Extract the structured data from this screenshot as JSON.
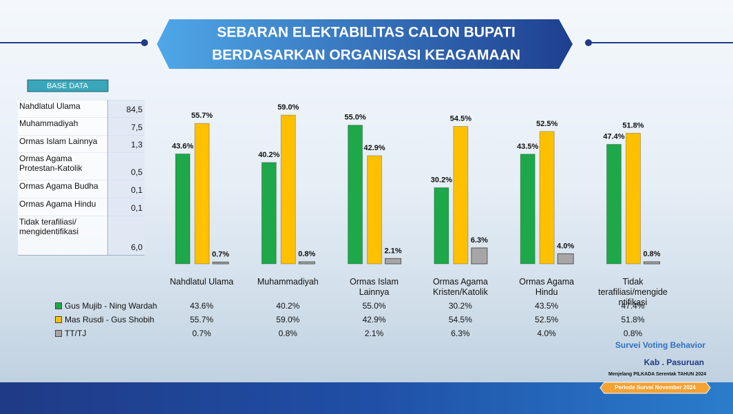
{
  "chart_data": {
    "type": "bar",
    "title": [
      "SEBARAN ELEKTABILITAS CALON BUPATI",
      "BERDASARKAN ORGANISASI KEAGAMAAN"
    ],
    "categories": [
      "Nahdlatul Ulama",
      "Muhammadiyah",
      "Ormas Islam Lainnya",
      "Ormas Agama Kristen/Katolik",
      "Ormas Agama Hindu",
      "Tidak terafiliasi/mengidentifikasi"
    ],
    "series": [
      {
        "name": "Gus Mujib - Ning Wardah",
        "color": "#1ea84a",
        "values": [
          43.6,
          40.2,
          55.0,
          30.2,
          43.5,
          47.4
        ],
        "value_labels": [
          "43.6%",
          "40.2%",
          "55.0%",
          "30.2%",
          "43.5%",
          "47.4%"
        ]
      },
      {
        "name": "Mas Rusdi - Gus Shobih",
        "color": "#ffc000",
        "values": [
          55.7,
          59.0,
          42.9,
          54.5,
          52.5,
          51.8
        ],
        "value_labels": [
          "55.7%",
          "59.0%",
          "42.9%",
          "54.5%",
          "52.5%",
          "51.8%"
        ]
      },
      {
        "name": "TT/TJ",
        "color": "#a6a6a6",
        "values": [
          0.7,
          0.8,
          2.1,
          6.3,
          4.0,
          0.8
        ],
        "value_labels": [
          "0.7%",
          "0.8%",
          "2.1%",
          "6.3%",
          "4.0%",
          "0.8%"
        ]
      }
    ]
  },
  "base_data": {
    "title": "BASE DATA",
    "rows": [
      [
        "Nahdlatul Ulama",
        "84,5"
      ],
      [
        "Muhammadiyah",
        "7,5"
      ],
      [
        "Ormas Islam Lainnya",
        "1,3"
      ],
      [
        "Ormas Agama Protestan-Katolik",
        "0,5"
      ],
      [
        "Ormas Agama Budha",
        "0,1"
      ],
      [
        "Ormas Agama Hindu",
        "0,1"
      ],
      [
        "Tidak terafiliasi/ mengidentifikasi",
        "6,0"
      ]
    ]
  },
  "footer": {
    "survey": "Survei Voting Behavior",
    "region": "Kab . Pasuruan",
    "event": "Menjelang PILKADA Serentak TAHUN 2024",
    "period": "Periode Survei November 2024"
  }
}
